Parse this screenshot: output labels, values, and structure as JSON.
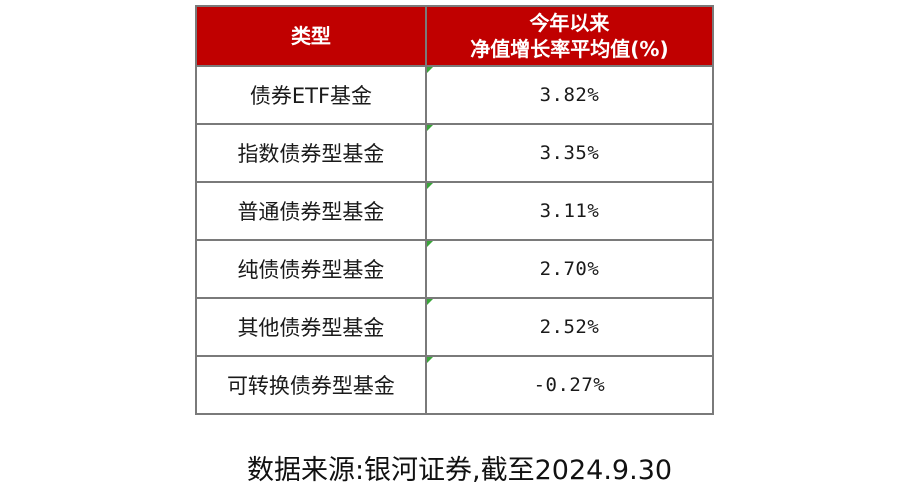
{
  "table": {
    "header": {
      "type_label": "类型",
      "value_label_line1": "今年以来",
      "value_label_line2": "净值增长率平均值(%)"
    },
    "rows": [
      {
        "type": "债券ETF基金",
        "value": "3.82%"
      },
      {
        "type": "指数债券型基金",
        "value": "3.35%"
      },
      {
        "type": "普通债券型基金",
        "value": "3.11%"
      },
      {
        "type": "纯债债券型基金",
        "value": "2.70%"
      },
      {
        "type": "其他债券型基金",
        "value": "2.52%"
      },
      {
        "type": "可转换债券型基金",
        "value": "-0.27%"
      }
    ]
  },
  "source_note": "数据来源:银河证券,截至2024.9.30",
  "colors": {
    "header_background": "#c00000",
    "header_text": "#ffffff",
    "border": "#7a7a7a",
    "cell_marker": "#3aa53a"
  }
}
